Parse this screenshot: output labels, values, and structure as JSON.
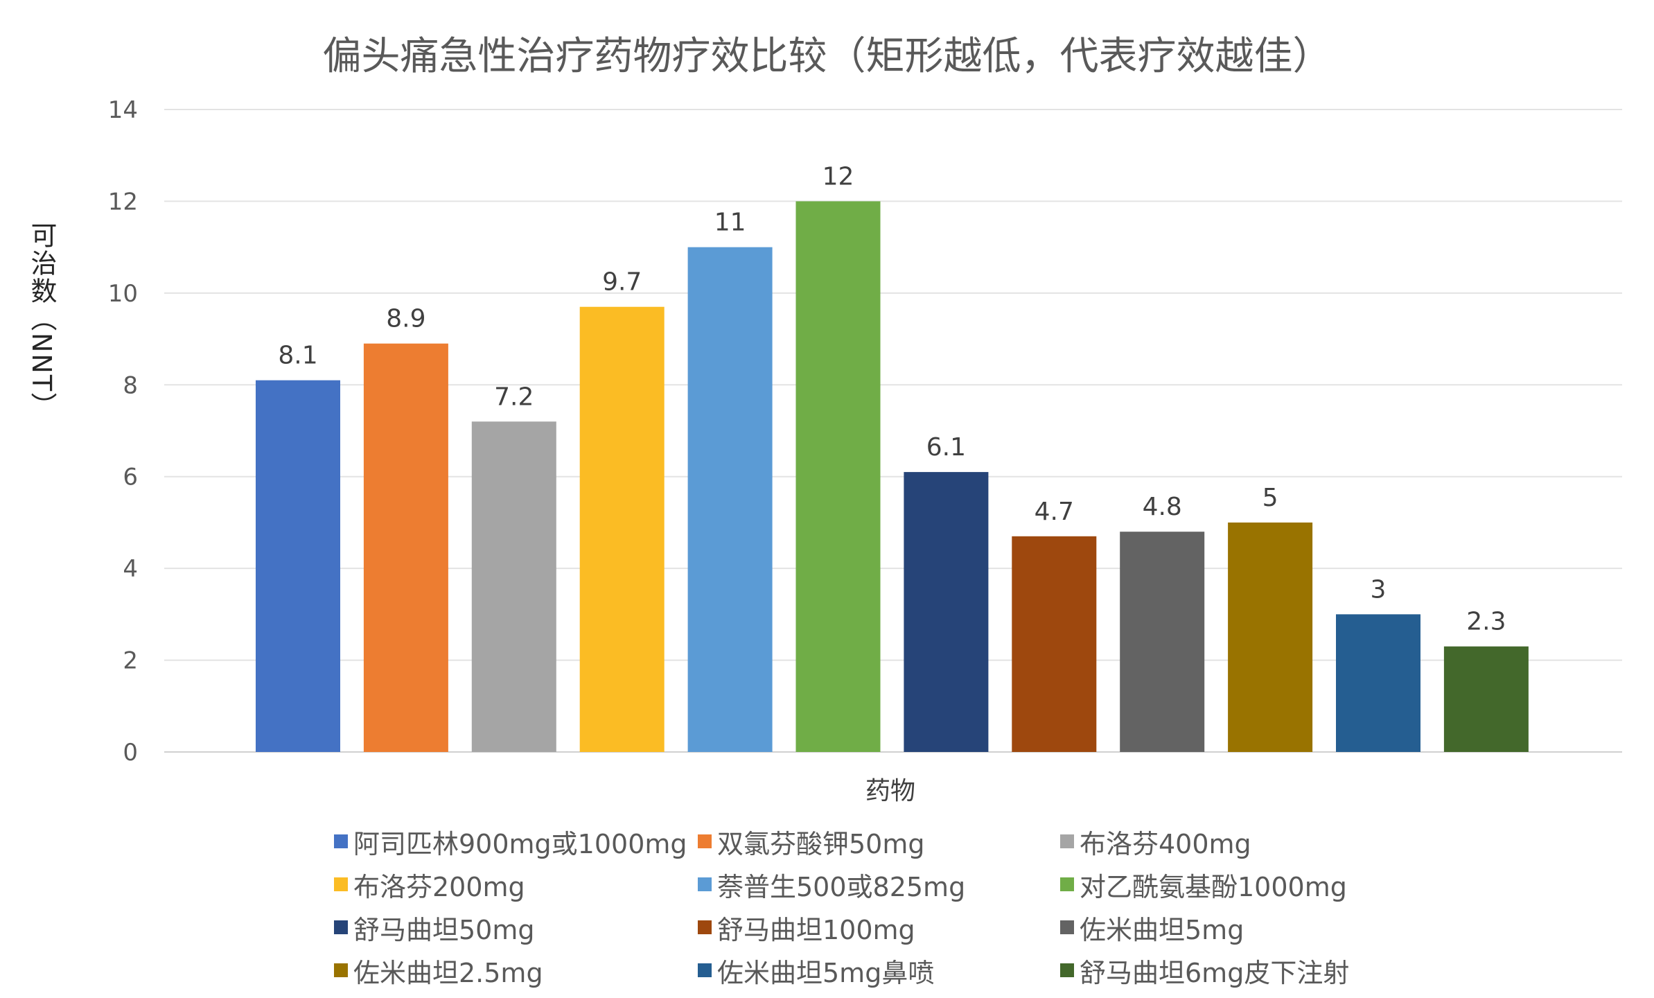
{
  "chart_data": {
    "type": "bar",
    "title": "偏头痛急性治疗药物疗效比较（矩形越低，代表疗效越佳）",
    "xlabel": "药物",
    "ylabel": "可治数（NNT）",
    "ylim": [
      0,
      14
    ],
    "yticks": [
      "0",
      "2",
      "4",
      "6",
      "8",
      "10",
      "12",
      "14"
    ],
    "grid": true,
    "legend_position": "bottom",
    "categories": [
      "阿司匹林900mg或1000mg",
      "双氯芬酸钾50mg",
      "布洛芬400mg",
      "布洛芬200mg",
      "萘普生500或825mg",
      "对乙酰氨基酚1000mg",
      "舒马曲坦50mg",
      "舒马曲坦100mg",
      "佐米曲坦5mg",
      "佐米曲坦2.5mg",
      "佐米曲坦5mg鼻喷",
      "舒马曲坦6mg皮下注射"
    ],
    "values": [
      8.1,
      8.9,
      7.2,
      9.7,
      11,
      12,
      6.1,
      4.7,
      4.8,
      5,
      3,
      2.3
    ],
    "value_labels": [
      "8.1",
      "8.9",
      "7.2",
      "9.7",
      "11",
      "12",
      "6.1",
      "4.7",
      "4.8",
      "5",
      "3",
      "2.3"
    ],
    "colors": [
      "#4472C4",
      "#ED7D31",
      "#A5A5A5",
      "#FBBC24",
      "#5B9BD5",
      "#70AD47",
      "#264478",
      "#9E480E",
      "#636363",
      "#997300",
      "#255E91",
      "#43682B"
    ]
  }
}
